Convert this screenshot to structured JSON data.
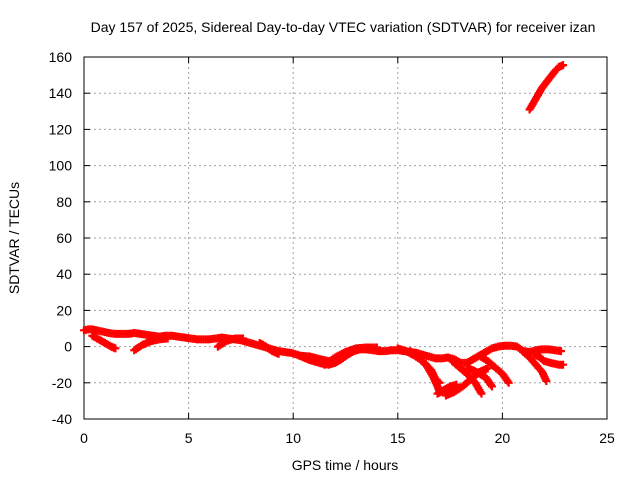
{
  "chart_data": {
    "type": "scatter",
    "title": "Day 157 of 2025, Sidereal Day-to-day VTEC variation (SDTVAR) for receiver izan",
    "xlabel": "GPS time / hours",
    "ylabel": "SDTVAR / TECUs",
    "xlim": [
      0,
      25
    ],
    "ylim": [
      -40,
      160
    ],
    "xticks": [
      0,
      5,
      10,
      15,
      20,
      25
    ],
    "yticks": [
      -40,
      -20,
      0,
      20,
      40,
      60,
      80,
      100,
      120,
      140,
      160
    ],
    "grid": true,
    "marker": "plus",
    "color": "#ff0000",
    "series": [
      {
        "points": [
          [
            0.0,
            9
          ],
          [
            0.2,
            9.5
          ],
          [
            0.4,
            9.5
          ],
          [
            0.6,
            9
          ],
          [
            0.8,
            8.5
          ],
          [
            1.0,
            8
          ],
          [
            1.2,
            7.5
          ],
          [
            1.5,
            7
          ],
          [
            1.8,
            7
          ],
          [
            2.1,
            7
          ],
          [
            2.4,
            7.5
          ],
          [
            2.7,
            7
          ],
          [
            3.0,
            6.5
          ],
          [
            3.3,
            6
          ],
          [
            3.6,
            5.5
          ],
          [
            3.9,
            6
          ],
          [
            4.2,
            6
          ],
          [
            4.5,
            5.5
          ],
          [
            4.8,
            5
          ],
          [
            5.1,
            4.5
          ],
          [
            5.4,
            4
          ],
          [
            5.7,
            4
          ],
          [
            6.0,
            4
          ],
          [
            6.3,
            4.5
          ],
          [
            6.6,
            5
          ],
          [
            6.9,
            4.5
          ],
          [
            7.2,
            4
          ],
          [
            7.5,
            3.5
          ],
          [
            7.8,
            2.5
          ],
          [
            8.1,
            1.5
          ],
          [
            8.4,
            0.5
          ],
          [
            8.7,
            -0.5
          ],
          [
            9.0,
            -1.5
          ],
          [
            9.3,
            -2.5
          ],
          [
            9.6,
            -3
          ],
          [
            9.9,
            -3.5
          ],
          [
            10.2,
            -4.5
          ],
          [
            10.5,
            -6
          ],
          [
            10.8,
            -7.5
          ],
          [
            11.1,
            -8.5
          ],
          [
            11.4,
            -9.5
          ],
          [
            11.7,
            -10
          ],
          [
            12.0,
            -9
          ],
          [
            12.3,
            -7
          ],
          [
            12.6,
            -4.5
          ],
          [
            12.9,
            -2.5
          ],
          [
            13.2,
            -1.5
          ],
          [
            13.5,
            -1.5
          ],
          [
            13.8,
            -2
          ],
          [
            14.1,
            -2.5
          ],
          [
            14.4,
            -2.5
          ],
          [
            14.7,
            -2
          ],
          [
            15.0,
            -2
          ],
          [
            15.3,
            -2.5
          ],
          [
            15.6,
            -3
          ],
          [
            15.9,
            -3.5
          ],
          [
            16.2,
            -4.5
          ],
          [
            16.5,
            -5.5
          ],
          [
            16.8,
            -6.5
          ],
          [
            17.1,
            -6.5
          ],
          [
            17.4,
            -6
          ],
          [
            17.7,
            -7
          ],
          [
            18.0,
            -9
          ],
          [
            18.3,
            -9
          ],
          [
            18.6,
            -7
          ],
          [
            18.9,
            -5
          ],
          [
            19.2,
            -3
          ],
          [
            19.5,
            -1
          ],
          [
            19.8,
            0
          ],
          [
            20.1,
            0.5
          ],
          [
            20.4,
            0.5
          ],
          [
            20.7,
            0
          ],
          [
            21.0,
            -2.5
          ],
          [
            21.3,
            -3
          ],
          [
            21.6,
            -2
          ],
          [
            21.9,
            -1.5
          ],
          [
            22.2,
            -1.5
          ],
          [
            22.5,
            -2
          ],
          [
            22.8,
            -2.5
          ]
        ]
      },
      {
        "points": [
          [
            0.4,
            6
          ],
          [
            0.7,
            4
          ],
          [
            1.0,
            2
          ],
          [
            1.3,
            0
          ],
          [
            1.5,
            -1
          ]
        ]
      },
      {
        "points": [
          [
            2.4,
            -2
          ],
          [
            2.8,
            1
          ],
          [
            3.2,
            3
          ],
          [
            3.6,
            4
          ],
          [
            4.0,
            4.5
          ]
        ]
      },
      {
        "points": [
          [
            6.4,
            0
          ],
          [
            6.8,
            3
          ],
          [
            7.2,
            4.5
          ],
          [
            7.6,
            4.5
          ]
        ]
      },
      {
        "points": [
          [
            8.4,
            2
          ],
          [
            8.7,
            0
          ],
          [
            9.0,
            -2.5
          ],
          [
            9.3,
            -4
          ]
        ]
      },
      {
        "points": [
          [
            10.3,
            -5
          ],
          [
            10.8,
            -5.5
          ],
          [
            11.3,
            -7
          ],
          [
            11.7,
            -8
          ]
        ]
      },
      {
        "points": [
          [
            11.5,
            -10
          ],
          [
            12.0,
            -6
          ],
          [
            12.5,
            -3
          ],
          [
            13.0,
            -1
          ],
          [
            13.5,
            -0.5
          ],
          [
            14.0,
            -0.5
          ]
        ]
      },
      {
        "points": [
          [
            15.0,
            -1
          ],
          [
            15.4,
            -2.5
          ],
          [
            15.8,
            -5
          ],
          [
            16.2,
            -8
          ],
          [
            16.6,
            -13
          ],
          [
            16.8,
            -18
          ],
          [
            17.0,
            -20
          ]
        ]
      },
      {
        "points": [
          [
            15.6,
            -2.5
          ],
          [
            16.0,
            -6
          ],
          [
            16.4,
            -11
          ],
          [
            16.7,
            -17
          ],
          [
            16.9,
            -22
          ],
          [
            17.0,
            -25
          ]
        ]
      },
      {
        "points": [
          [
            16.9,
            -26
          ],
          [
            17.2,
            -24
          ],
          [
            17.5,
            -22
          ],
          [
            17.8,
            -21
          ]
        ]
      },
      {
        "points": [
          [
            17.3,
            -27
          ],
          [
            17.7,
            -25
          ],
          [
            18.1,
            -22
          ],
          [
            18.5,
            -18
          ],
          [
            18.9,
            -14
          ],
          [
            19.3,
            -12
          ]
        ]
      },
      {
        "points": [
          [
            17.6,
            -8
          ],
          [
            18.0,
            -12
          ],
          [
            18.4,
            -16
          ],
          [
            18.7,
            -20
          ],
          [
            18.9,
            -24
          ],
          [
            19.0,
            -26
          ]
        ]
      },
      {
        "points": [
          [
            18.3,
            -12
          ],
          [
            18.6,
            -13
          ],
          [
            18.9,
            -15
          ],
          [
            19.2,
            -17
          ],
          [
            19.5,
            -22
          ]
        ]
      },
      {
        "points": [
          [
            18.9,
            -5
          ],
          [
            19.3,
            -8
          ],
          [
            19.7,
            -12
          ],
          [
            20.0,
            -15
          ],
          [
            20.3,
            -20
          ]
        ]
      },
      {
        "points": [
          [
            21.0,
            -3
          ],
          [
            21.3,
            -6
          ],
          [
            21.6,
            -10
          ],
          [
            21.9,
            -14
          ],
          [
            22.1,
            -19
          ]
        ]
      },
      {
        "points": [
          [
            21.5,
            -4
          ],
          [
            21.8,
            -6
          ],
          [
            22.0,
            -8
          ],
          [
            22.3,
            -9
          ],
          [
            22.7,
            -10
          ],
          [
            22.9,
            -10
          ]
        ]
      },
      {
        "points": [
          [
            21.3,
            131
          ],
          [
            21.5,
            135
          ],
          [
            21.7,
            139
          ],
          [
            21.9,
            143
          ],
          [
            22.1,
            146
          ],
          [
            22.3,
            149
          ],
          [
            22.5,
            152
          ],
          [
            22.7,
            154.5
          ],
          [
            22.9,
            155.5
          ]
        ]
      }
    ]
  }
}
